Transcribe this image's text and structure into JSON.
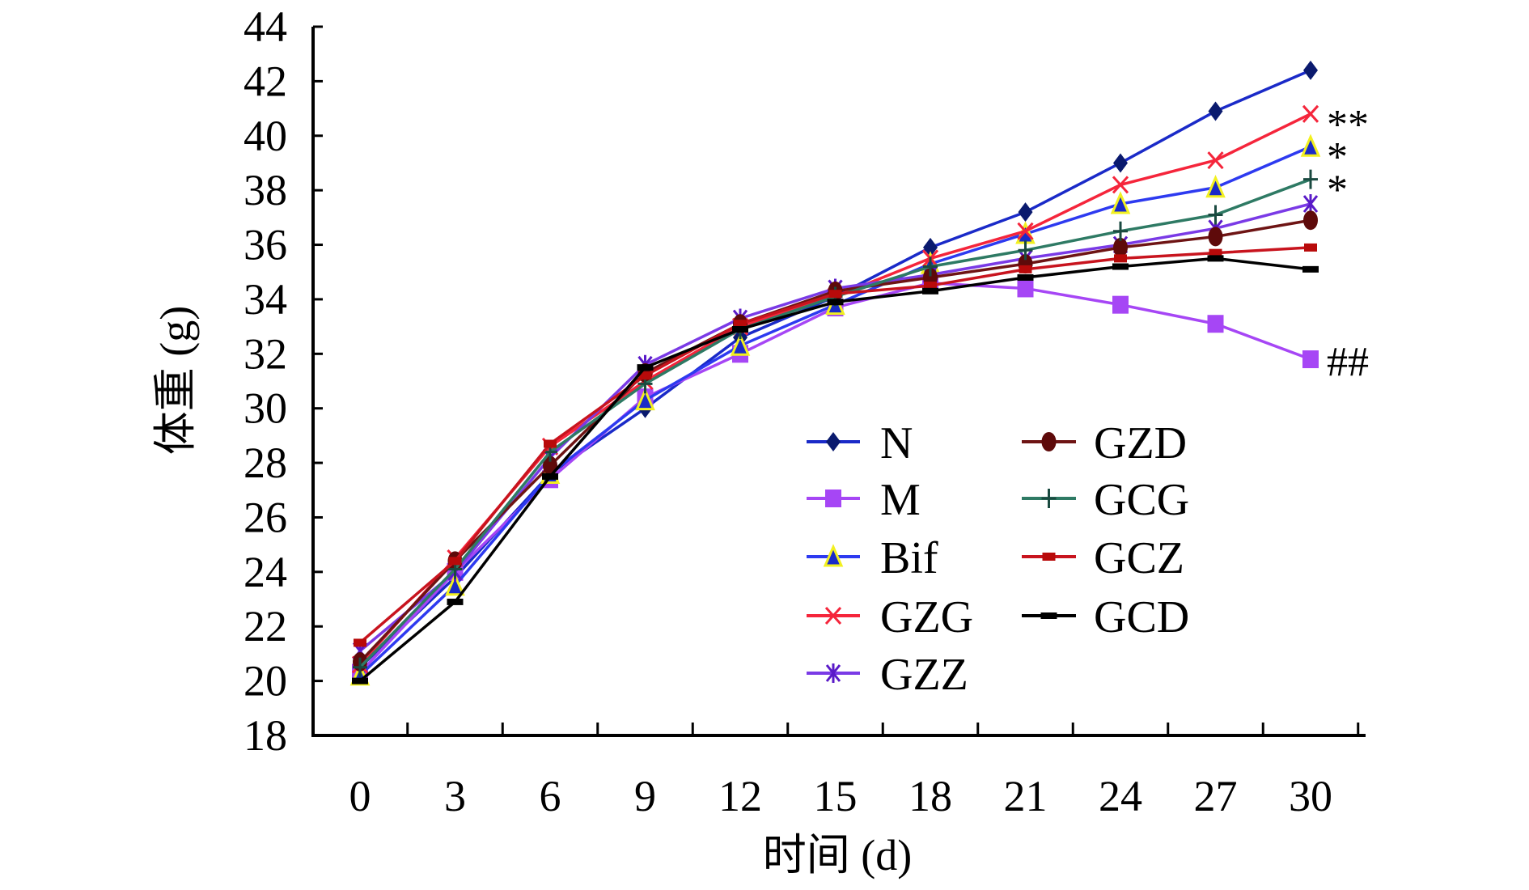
{
  "chart_data": {
    "type": "line",
    "title": "",
    "xlabel": "时间 (d)",
    "ylabel": "体重 (g)",
    "x": [
      0,
      3,
      6,
      9,
      12,
      15,
      18,
      21,
      24,
      27,
      30
    ],
    "x_tick_labels": [
      "0",
      "3",
      "6",
      "9",
      "12",
      "15",
      "18",
      "21",
      "24",
      "27",
      "30"
    ],
    "ylim": [
      18,
      44
    ],
    "y_ticks": [
      18,
      20,
      22,
      24,
      26,
      28,
      30,
      32,
      34,
      36,
      38,
      40,
      42,
      44
    ],
    "y_tick_labels": [
      "18",
      "20",
      "22",
      "24",
      "26",
      "28",
      "30",
      "32",
      "34",
      "36",
      "38",
      "40",
      "42",
      "44"
    ],
    "grid": false,
    "legend_position": "center-right",
    "series": [
      {
        "name": "N",
        "marker": "diamond",
        "color": "#0a1a6e",
        "line_color": "#1a2ac8",
        "values": [
          20.5,
          23.8,
          27.6,
          30.0,
          32.6,
          34.1,
          35.9,
          37.2,
          39.0,
          40.9,
          42.4
        ]
      },
      {
        "name": "M",
        "marker": "square",
        "color": "#a646f5",
        "line_color": "#a646f5",
        "values": [
          20.3,
          24.0,
          27.4,
          30.4,
          32.0,
          33.7,
          34.6,
          34.4,
          33.8,
          33.1,
          31.8
        ]
      },
      {
        "name": "Bif",
        "marker": "triangle",
        "color": "#1a2ac8",
        "line_color": "#2d3af0",
        "values": [
          20.2,
          23.5,
          27.6,
          30.3,
          32.3,
          33.8,
          35.3,
          36.4,
          37.5,
          38.1,
          39.6
        ]
      },
      {
        "name": "GZG",
        "marker": "x",
        "color": "#f5253b",
        "line_color": "#f5253b",
        "values": [
          20.6,
          24.5,
          28.6,
          31.0,
          33.0,
          34.1,
          35.5,
          36.5,
          38.2,
          39.1,
          40.8
        ]
      },
      {
        "name": "GZZ",
        "marker": "star",
        "color": "#5a1ac8",
        "line_color": "#7a3ae6",
        "values": [
          21.1,
          24.0,
          28.2,
          31.6,
          33.3,
          34.4,
          34.9,
          35.5,
          36.0,
          36.6,
          37.5
        ]
      },
      {
        "name": "GZD",
        "marker": "circle",
        "color": "#5e0a0a",
        "line_color": "#6e1414",
        "values": [
          20.7,
          24.4,
          27.9,
          31.3,
          33.1,
          34.3,
          34.8,
          35.3,
          35.9,
          36.3,
          36.9
        ]
      },
      {
        "name": "GCG",
        "marker": "plus",
        "color": "#1a4a40",
        "line_color": "#2e7a64",
        "values": [
          20.5,
          24.1,
          28.4,
          30.9,
          32.9,
          34.1,
          35.2,
          35.8,
          36.5,
          37.1,
          38.4
        ]
      },
      {
        "name": "GCZ",
        "marker": "dash",
        "color": "#b80a0a",
        "line_color": "#c8141e",
        "values": [
          21.4,
          24.4,
          28.7,
          31.2,
          33.1,
          34.2,
          34.5,
          35.1,
          35.5,
          35.7,
          35.9
        ]
      },
      {
        "name": "GCD",
        "marker": "bar",
        "color": "#000000",
        "line_color": "#000000",
        "values": [
          20.0,
          22.9,
          27.5,
          31.5,
          32.9,
          33.9,
          34.3,
          34.8,
          35.2,
          35.5,
          35.1
        ]
      }
    ],
    "annotations": [
      {
        "series": "GZG",
        "x": 30,
        "text": "**"
      },
      {
        "series": "Bif",
        "x": 30,
        "text": "*"
      },
      {
        "series": "GCG",
        "x": 30,
        "text": "*"
      },
      {
        "series": "M",
        "x": 30,
        "text": "##"
      }
    ]
  }
}
